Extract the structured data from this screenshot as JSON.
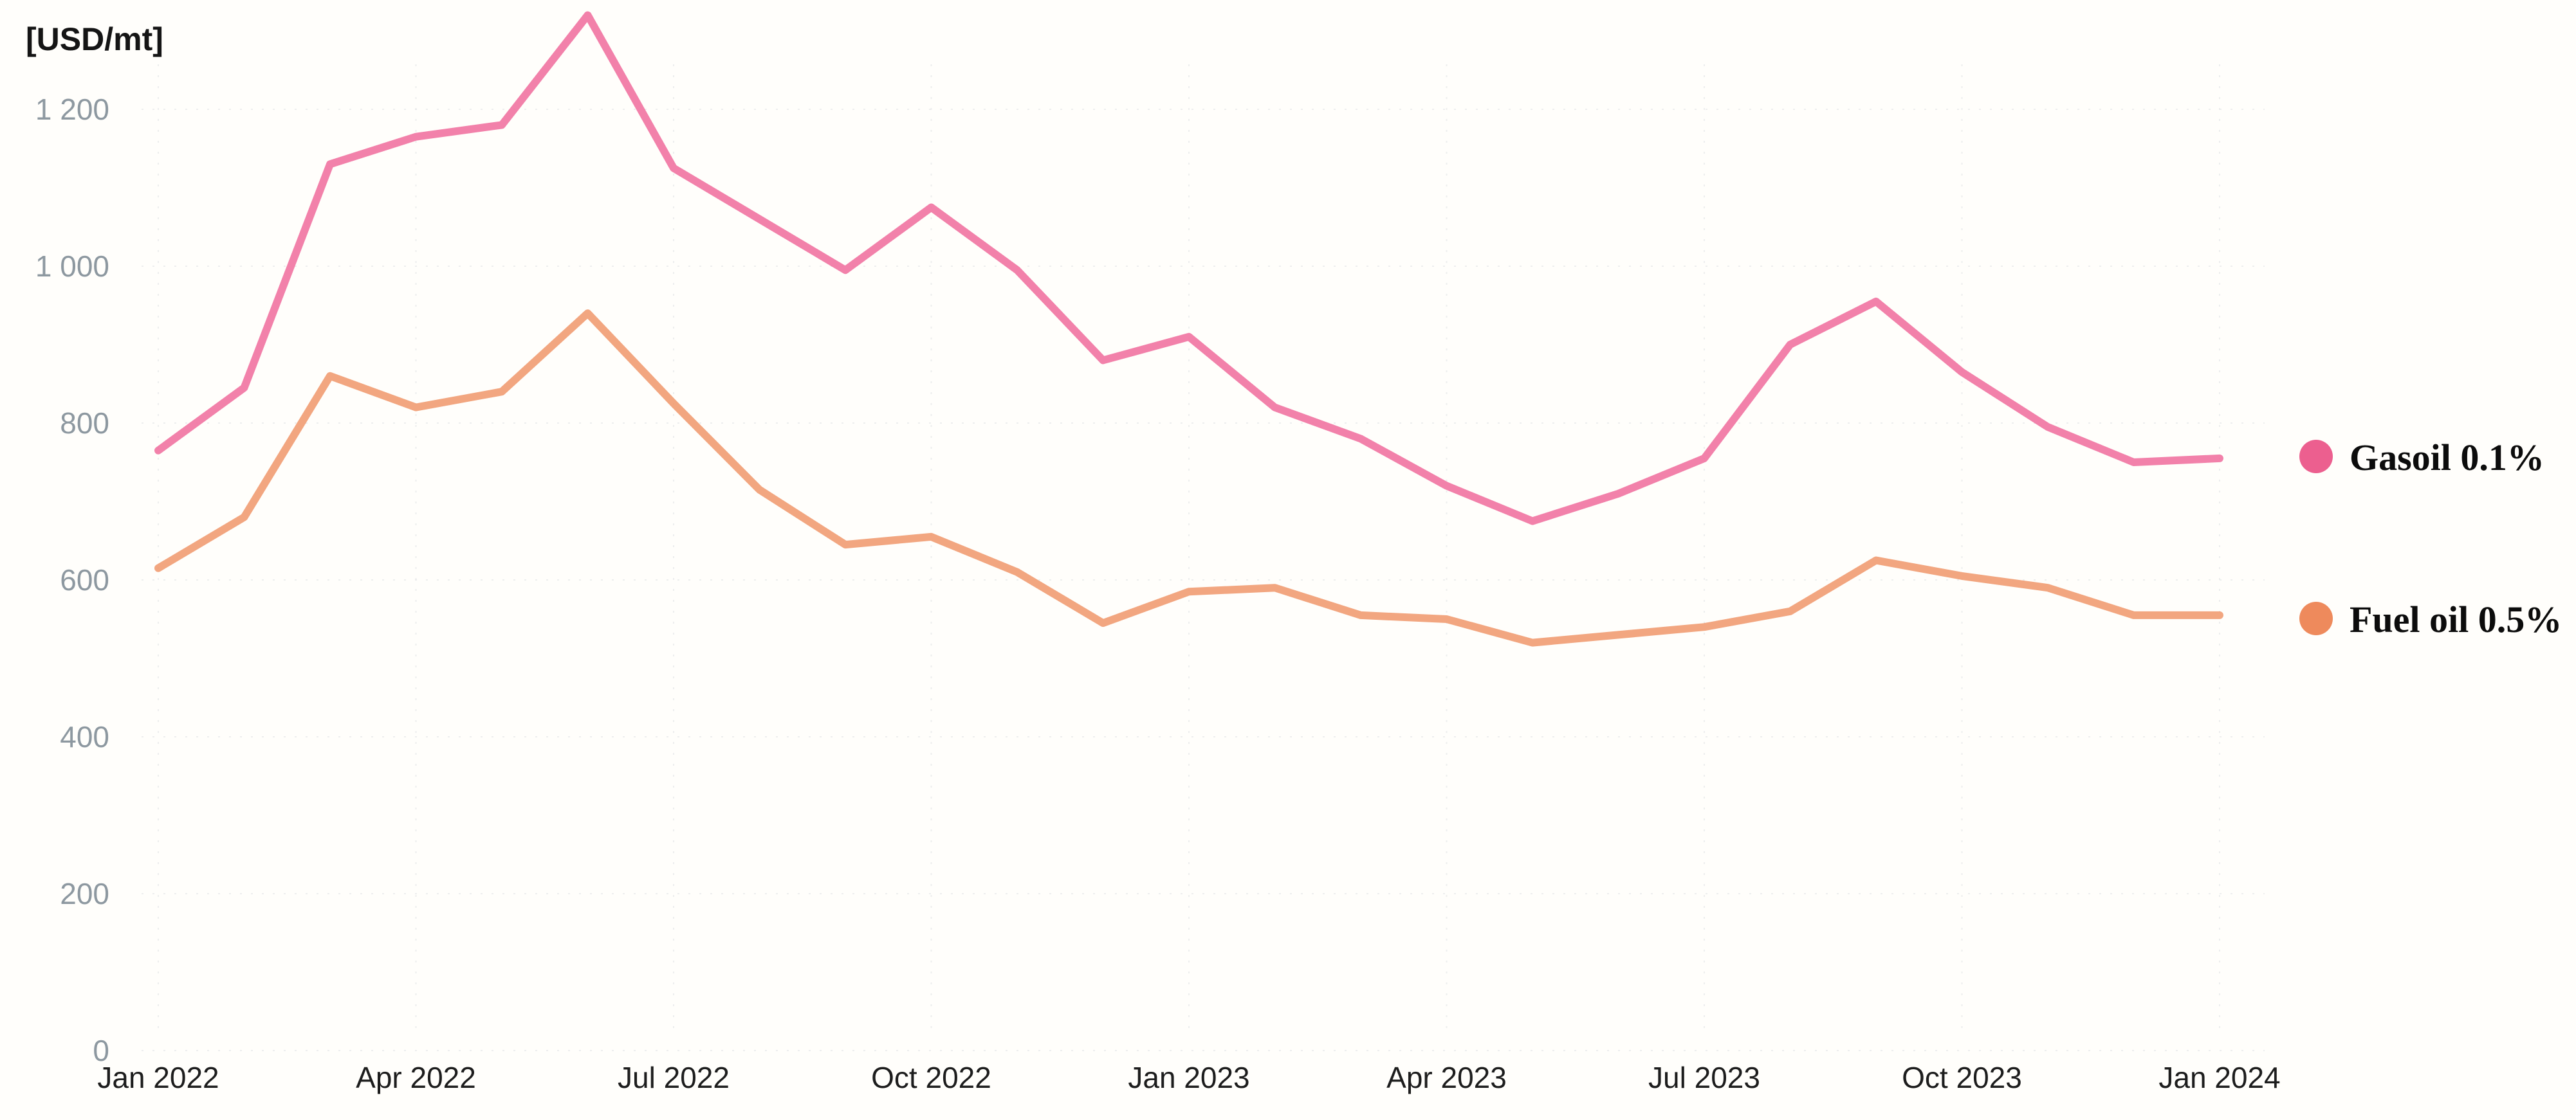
{
  "chart_data": {
    "type": "line",
    "title": "",
    "unit_label": "[USD/mt]",
    "xlabel": "",
    "ylabel": "[USD/mt]",
    "x": [
      "Jan 2022",
      "Feb 2022",
      "Mar 2022",
      "Apr 2022",
      "May 2022",
      "Jun 2022",
      "Jul 2022",
      "Aug 2022",
      "Sep 2022",
      "Oct 2022",
      "Nov 2022",
      "Dec 2022",
      "Jan 2023",
      "Feb 2023",
      "Mar 2023",
      "Apr 2023",
      "May 2023",
      "Jun 2023",
      "Jul 2023",
      "Aug 2023",
      "Sep 2023",
      "Oct 2023",
      "Nov 2023",
      "Dec 2023",
      "Jan 2024"
    ],
    "x_tick_labels": [
      "Jan 2022",
      "Apr 2022",
      "Jul 2022",
      "Oct 2022",
      "Jan 2023",
      "Apr 2023",
      "Jul 2023",
      "Oct 2023",
      "Jan 2024"
    ],
    "y_ticks": [
      0,
      200,
      400,
      600,
      800,
      1000,
      1200
    ],
    "y_tick_labels": [
      "0",
      "200",
      "400",
      "600",
      "800",
      "1 000",
      "1 200"
    ],
    "ylim": [
      0,
      1340
    ],
    "grid": "faint dotted vertical lines at quarters and horizontal lines at y-ticks",
    "legend_position": "right",
    "series": [
      {
        "name": "Gasoil 0.1%",
        "color": "#f0709e",
        "legend_dot_color": "#ec5f8f",
        "values": [
          765,
          845,
          1130,
          1165,
          1180,
          1320,
          1125,
          1060,
          995,
          1075,
          995,
          880,
          910,
          820,
          780,
          720,
          675,
          710,
          755,
          900,
          955,
          865,
          795,
          750,
          755
        ]
      },
      {
        "name": "Fuel oil 0.5%",
        "color": "#f09a6e",
        "legend_dot_color": "#ee8a5c",
        "values": [
          615,
          680,
          860,
          820,
          840,
          940,
          825,
          715,
          645,
          655,
          610,
          545,
          585,
          590,
          555,
          550,
          520,
          530,
          540,
          560,
          625,
          605,
          590,
          555,
          555
        ]
      }
    ]
  },
  "colors": {
    "background": "#fffefb",
    "y_tick_text": "#8d98a0",
    "x_tick_text": "#1d1d1d",
    "unit_text": "#151515",
    "legend_text": "#0c0c0c",
    "gridline": "#e2e4e6"
  }
}
